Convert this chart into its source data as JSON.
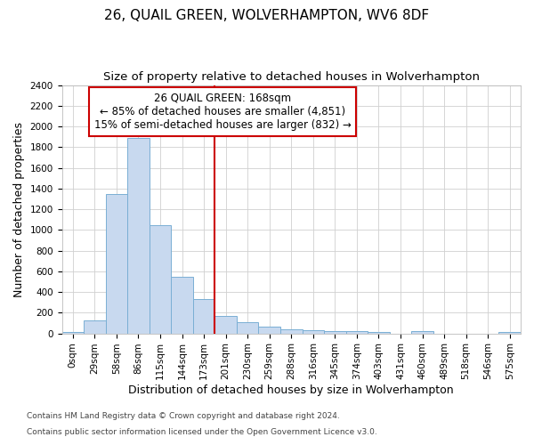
{
  "title": "26, QUAIL GREEN, WOLVERHAMPTON, WV6 8DF",
  "subtitle": "Size of property relative to detached houses in Wolverhampton",
  "xlabel": "Distribution of detached houses by size in Wolverhampton",
  "ylabel": "Number of detached properties",
  "footnote1": "Contains HM Land Registry data © Crown copyright and database right 2024.",
  "footnote2": "Contains public sector information licensed under the Open Government Licence v3.0.",
  "bins": [
    "0sqm",
    "29sqm",
    "58sqm",
    "86sqm",
    "115sqm",
    "144sqm",
    "173sqm",
    "201sqm",
    "230sqm",
    "259sqm",
    "288sqm",
    "316sqm",
    "345sqm",
    "374sqm",
    "403sqm",
    "431sqm",
    "460sqm",
    "489sqm",
    "518sqm",
    "546sqm",
    "575sqm"
  ],
  "values": [
    15,
    125,
    1350,
    1890,
    1045,
    545,
    335,
    165,
    110,
    62,
    40,
    30,
    25,
    20,
    14,
    0,
    20,
    0,
    0,
    0,
    15
  ],
  "bar_color": "#c8d9ef",
  "bar_edge_color": "#7aafd4",
  "vline_color": "#cc0000",
  "vline_bin_index": 6,
  "annotation_line1": "26 QUAIL GREEN: 168sqm",
  "annotation_line2": "← 85% of detached houses are smaller (4,851)",
  "annotation_line3": "15% of semi-detached houses are larger (832) →",
  "annotation_box_color": "#cc0000",
  "ylim": [
    0,
    2400
  ],
  "yticks": [
    0,
    200,
    400,
    600,
    800,
    1000,
    1200,
    1400,
    1600,
    1800,
    2000,
    2200,
    2400
  ],
  "bg_color": "#ffffff",
  "grid_color": "#d0d0d0",
  "title_fontsize": 11,
  "subtitle_fontsize": 9.5,
  "axis_label_fontsize": 9,
  "tick_fontsize": 7.5,
  "annotation_fontsize": 8.5,
  "footnote_fontsize": 6.5
}
